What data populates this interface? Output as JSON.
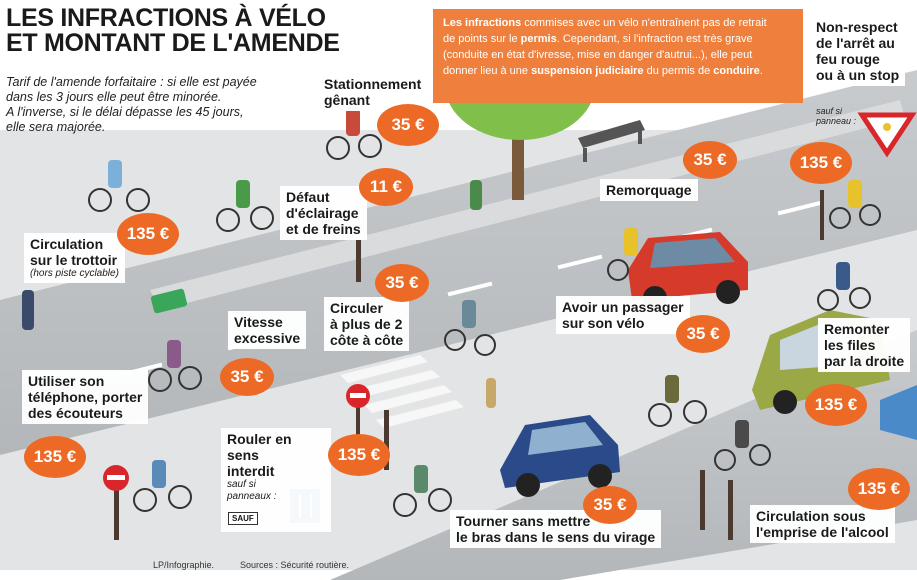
{
  "title": {
    "line1": "LES INFRACTIONS À VÉLO",
    "line2": "ET MONTANT DE L'AMENDE"
  },
  "intro": {
    "lines": [
      "Tarif de l'amende forfaitaire : si elle est payée",
      "dans les 3 jours elle peut être minorée.",
      "A l'inverse, si le délai dépasse les 45 jours,",
      "elle sera majorée."
    ]
  },
  "note": {
    "l1a": "Les infractions",
    "l1b": " commises avec un vélo n'entraînent pas de retrait",
    "l2a": "de points sur le ",
    "l2b": "permis",
    "l2c": ". Cependant, si l'infraction est très grave",
    "l3": "(conduite en état d'ivresse, mise en danger d'autrui...), elle peut",
    "l4a": "donner lieu à une ",
    "l4b": "suspension judiciaire",
    "l4c": " du permis de ",
    "l4d": "conduire",
    "l4e": "."
  },
  "labels": {
    "stationnement": [
      "Stationnement",
      "gênant"
    ],
    "defaut": [
      "Défaut",
      "d'éclairage",
      "et de freins"
    ],
    "trottoir": [
      "Circulation",
      "sur le trottoir"
    ],
    "trottoir_sub": "(hors piste cyclable)",
    "vitesse": [
      "Vitesse",
      "excessive"
    ],
    "circuler": [
      "Circuler",
      "à plus de 2",
      "côte à côte"
    ],
    "remorquage": "Remorquage",
    "passager": [
      "Avoir un passager",
      "sur son vélo"
    ],
    "nonrespect": [
      "Non-respect",
      "de l'arrêt au",
      "feu rouge",
      "ou à un stop"
    ],
    "nonrespect_sub": [
      "sauf si",
      "panneau :"
    ],
    "remonter": [
      "Remonter",
      "les files",
      "par la droite"
    ],
    "telephone": [
      "Utiliser son",
      "téléphone, porter",
      "des écouteurs"
    ],
    "interdit": [
      "Rouler en sens",
      "interdit"
    ],
    "interdit_sub": [
      "sauf si",
      "panneaux :"
    ],
    "tourner": [
      "Tourner sans mettre",
      "le bras dans le sens du virage"
    ],
    "alcool": [
      "Circulation sous",
      "l'emprise de l'alcool"
    ]
  },
  "fines": {
    "stationnement": "35 €",
    "defaut": "11 €",
    "trottoir": "135 €",
    "vitesse": "35 €",
    "circuler": "35 €",
    "remorquage": "35 €",
    "passager": "35 €",
    "nonrespect": "135 €",
    "remonter": "135 €",
    "telephone": "135 €",
    "interdit": "135 €",
    "tourner": "35 €",
    "alcool": "135 €"
  },
  "sign_tag": "SAUF",
  "footer": {
    "credit": "LP/Infographie.",
    "sources": "Sources : Sécurité routière."
  },
  "colors": {
    "accent": "#ec6a25",
    "note_bg": "#ef7f3c",
    "road": "#bfc3c6",
    "sidewalk": "#e4e6e8",
    "red_car": "#d63a2a",
    "blue_car": "#2a4a8a",
    "green_car": "#9aa846"
  }
}
